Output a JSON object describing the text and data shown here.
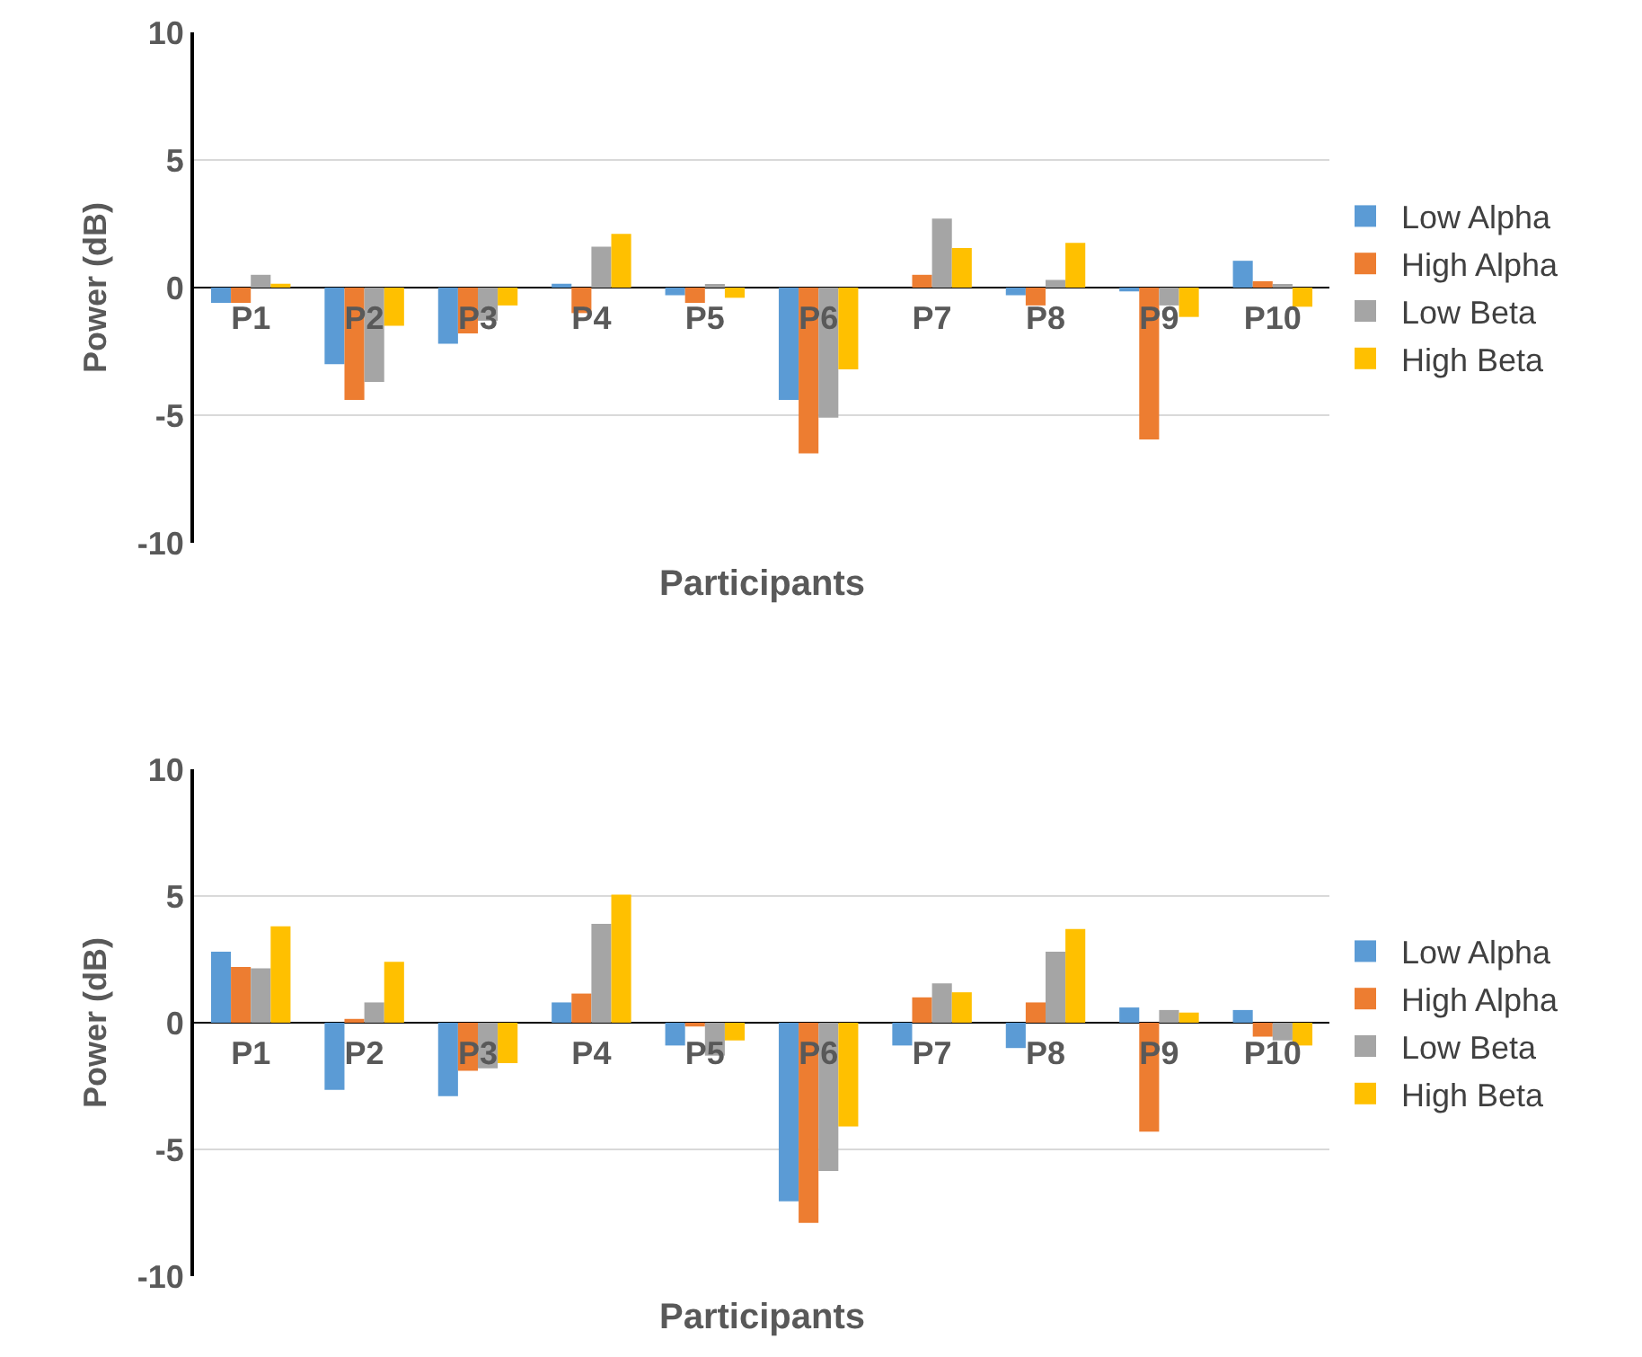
{
  "chart_data": [
    {
      "type": "bar",
      "ylabel": "Power (dB)",
      "xlabel": "Participants",
      "categories": [
        "P1",
        "P2",
        "P3",
        "P4",
        "P5",
        "P6",
        "P7",
        "P8",
        "P9",
        "P10"
      ],
      "series": [
        {
          "name": "Low Alpha",
          "color": "#5b9bd5",
          "values": [
            -0.6,
            -3.0,
            -2.2,
            0.15,
            -0.3,
            -4.4,
            0,
            -0.3,
            -0.15,
            1.05
          ]
        },
        {
          "name": "High Alpha",
          "color": "#ed7d31",
          "values": [
            -0.6,
            -4.4,
            -1.8,
            -1.0,
            -0.6,
            -6.5,
            0.5,
            -0.7,
            -5.95,
            0.25
          ]
        },
        {
          "name": "Low Beta",
          "color": "#a5a5a5",
          "values": [
            0.5,
            -3.7,
            -1.3,
            1.6,
            0.1,
            -5.1,
            2.7,
            0.3,
            -0.7,
            0.1
          ]
        },
        {
          "name": "High Beta",
          "color": "#ffc000",
          "values": [
            0.15,
            -1.5,
            -0.7,
            2.1,
            -0.4,
            -3.2,
            1.55,
            1.75,
            -1.15,
            -0.75
          ]
        }
      ],
      "ylim": [
        -10,
        10
      ],
      "yticks": [
        -10,
        -5,
        0,
        5,
        10
      ],
      "grid": "y",
      "legend": "right"
    },
    {
      "type": "bar",
      "ylabel": "Power (dB)",
      "xlabel": "Participants",
      "categories": [
        "P1",
        "P2",
        "P3",
        "P4",
        "P5",
        "P6",
        "P7",
        "P8",
        "P9",
        "P10"
      ],
      "series": [
        {
          "name": "Low Alpha",
          "color": "#5b9bd5",
          "values": [
            2.8,
            -2.65,
            -2.9,
            0.8,
            -0.9,
            -7.05,
            -0.9,
            -1.0,
            0.6,
            0.5
          ]
        },
        {
          "name": "High Alpha",
          "color": "#ed7d31",
          "values": [
            2.2,
            0.15,
            -1.9,
            1.15,
            -0.15,
            -7.9,
            1.0,
            0.8,
            -4.3,
            -0.55
          ]
        },
        {
          "name": "Low Beta",
          "color": "#a5a5a5",
          "values": [
            2.15,
            0.8,
            -1.8,
            3.9,
            -1.3,
            -5.85,
            1.55,
            2.8,
            0.5,
            -0.7
          ]
        },
        {
          "name": "High Beta",
          "color": "#ffc000",
          "values": [
            3.8,
            2.4,
            -1.6,
            5.05,
            -0.7,
            -4.1,
            1.2,
            3.7,
            0.4,
            -0.9
          ]
        }
      ],
      "ylim": [
        -10,
        10
      ],
      "yticks": [
        -10,
        -5,
        0,
        5,
        10
      ],
      "grid": "y",
      "legend": "right"
    }
  ]
}
